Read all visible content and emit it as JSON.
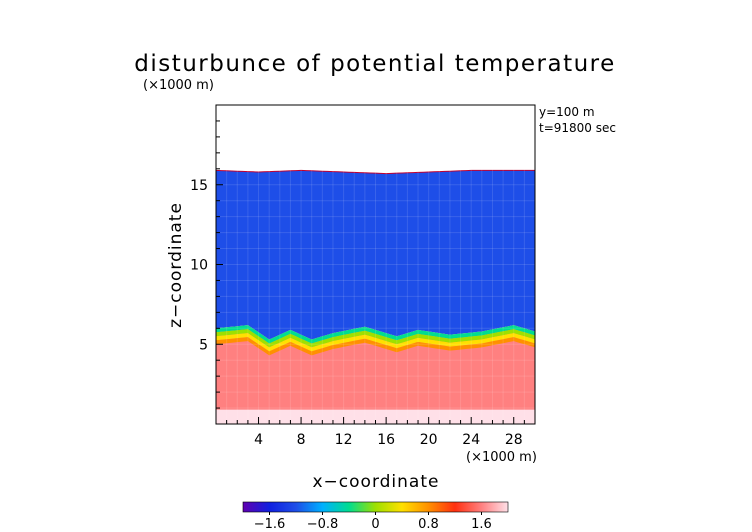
{
  "chart_data": {
    "type": "heatmap",
    "title": "disturbunce of potential temperature",
    "xlabel": "x−coordinate",
    "ylabel": "z−coordinate",
    "x_unit_label": "(×1000 m)",
    "y_unit_label": "(×1000 m)",
    "annotations": [
      "y=100 m",
      "t=91800 sec"
    ],
    "xlim": [
      0,
      30
    ],
    "ylim": [
      0,
      20
    ],
    "x_ticks": [
      4,
      8,
      12,
      16,
      20,
      24,
      28
    ],
    "x_tick_labels": [
      "4",
      "8",
      "12",
      "16",
      "20",
      "24",
      "28"
    ],
    "y_ticks": [
      5,
      10,
      15
    ],
    "y_tick_labels": [
      "5",
      "10",
      "15"
    ],
    "colorbar": {
      "range": [
        -2.0,
        2.0
      ],
      "ticks": [
        -1.6,
        -0.8,
        0,
        0.8,
        1.6
      ],
      "tick_labels": [
        "−1.6",
        "−0.8",
        "0",
        "0.8",
        "1.6"
      ],
      "colors": [
        "#6000b0",
        "#1020e0",
        "#1e4ee8",
        "#00b0ff",
        "#00dd90",
        "#9ee000",
        "#ffe000",
        "#ff9000",
        "#ff3010",
        "#ff8080",
        "#ffe0e8"
      ]
    },
    "field": {
      "domain_top_z": [
        15.9,
        15.8,
        15.9,
        15.8,
        15.7,
        15.8,
        15.9,
        15.9,
        15.9
      ],
      "domain_top_x": [
        0,
        4,
        8,
        12,
        16,
        20,
        24,
        28,
        30
      ],
      "upper_value": -1.3,
      "front_z": [
        6.0,
        6.2,
        5.3,
        5.9,
        5.3,
        5.7,
        6.1,
        5.5,
        5.9,
        5.6,
        5.8,
        6.2,
        5.8
      ],
      "front_x": [
        0,
        3,
        5,
        7,
        9,
        11,
        14,
        17,
        19,
        22,
        25,
        28,
        30
      ],
      "lower_value": 1.4,
      "surface_value": 2.0
    }
  }
}
